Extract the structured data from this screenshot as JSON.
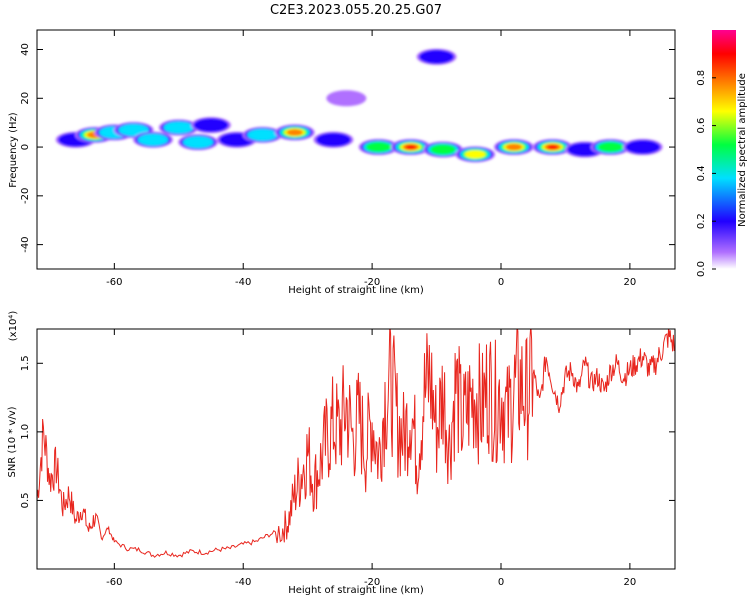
{
  "figure": {
    "title": "C2E3.2023.055.20.25.G07"
  },
  "chart_data": [
    {
      "type": "heatmap",
      "xlabel": "Height of straight line (km)",
      "ylabel": "Frequency (Hz)",
      "xlim": [
        -72,
        27
      ],
      "ylim": [
        -50,
        48
      ],
      "xticks": [
        -60,
        -40,
        -20,
        0,
        20
      ],
      "xtick_labels": [
        "-60",
        "-40",
        "-20",
        "0",
        "20"
      ],
      "yticks": [
        -40,
        -20,
        0,
        20,
        40
      ],
      "ytick_labels": [
        "-40",
        "-20",
        "0",
        "20",
        "40"
      ],
      "grid": false,
      "colorbar": {
        "label": "Normalized spectral amplitude",
        "range": [
          0,
          1
        ],
        "ticks": [
          0.0,
          0.2,
          0.4,
          0.6,
          0.8
        ],
        "tick_labels": [
          "0.0",
          "0.2",
          "0.4",
          "0.6",
          "0.8"
        ],
        "colors": [
          "#ffffff",
          "#b070ff",
          "#2000ff",
          "#00e0ff",
          "#00ff40",
          "#ffff00",
          "#ff8000",
          "#ff0000",
          "#ff0090"
        ]
      },
      "features": [
        {
          "x": -66,
          "y": 3,
          "amp": 0.35
        },
        {
          "x": -63,
          "y": 5,
          "amp": 0.8
        },
        {
          "x": -60,
          "y": 6,
          "amp": 0.45
        },
        {
          "x": -57,
          "y": 7,
          "amp": 0.4
        },
        {
          "x": -54,
          "y": 3,
          "amp": 0.45
        },
        {
          "x": -50,
          "y": 8,
          "amp": 0.45
        },
        {
          "x": -47,
          "y": 2,
          "amp": 0.4
        },
        {
          "x": -45,
          "y": 9,
          "amp": 0.3
        },
        {
          "x": -41,
          "y": 3,
          "amp": 0.35
        },
        {
          "x": -37,
          "y": 5,
          "amp": 0.45
        },
        {
          "x": -32,
          "y": 6,
          "amp": 0.85
        },
        {
          "x": -26,
          "y": 3,
          "amp": 0.3
        },
        {
          "x": -19,
          "y": 0,
          "amp": 0.6
        },
        {
          "x": -14,
          "y": 0,
          "amp": 0.9
        },
        {
          "x": -9,
          "y": -1,
          "amp": 0.65
        },
        {
          "x": -4,
          "y": -3,
          "amp": 0.75
        },
        {
          "x": 2,
          "y": 0,
          "amp": 0.85
        },
        {
          "x": 8,
          "y": 0,
          "amp": 0.9
        },
        {
          "x": 13,
          "y": -1,
          "amp": 0.35
        },
        {
          "x": 17,
          "y": 0,
          "amp": 0.6
        },
        {
          "x": 22,
          "y": 0,
          "amp": 0.35
        },
        {
          "x": -10,
          "y": 37,
          "amp": 0.2
        },
        {
          "x": -24,
          "y": 20,
          "amp": 0.15
        }
      ]
    },
    {
      "type": "line",
      "xlabel": "Height of straight line (km)",
      "ylabel": "SNR (10 * v/v)",
      "multiplier": "(x10⁴)",
      "xlim": [
        -72,
        27
      ],
      "ylim": [
        0,
        1.75
      ],
      "xticks": [
        -60,
        -40,
        -20,
        0,
        20
      ],
      "xtick_labels": [
        "-60",
        "-40",
        "-20",
        "0",
        "20"
      ],
      "yticks": [
        0.5,
        1.0,
        1.5
      ],
      "ytick_labels": [
        "0.5",
        "1.0",
        "1.5"
      ],
      "grid": false,
      "series": [
        {
          "color": "#e8261e",
          "x": [
            -72,
            -71,
            -70,
            -69,
            -68,
            -67,
            -66,
            -65,
            -64,
            -63,
            -62,
            -61,
            -60,
            -58,
            -56,
            -54,
            -52,
            -50,
            -48,
            -46,
            -44,
            -42,
            -40,
            -38,
            -36,
            -34,
            -33,
            -32,
            -31,
            -30,
            -29,
            -28,
            -27,
            -26,
            -25,
            -24,
            -23,
            -22,
            -21,
            -20,
            -19,
            -18,
            -17,
            -16,
            -15,
            -14,
            -13,
            -12,
            -11,
            -10,
            -9,
            -8,
            -7,
            -6,
            -5,
            -4,
            -3,
            -2,
            -1,
            0,
            1,
            2,
            3,
            4,
            5,
            6,
            7,
            8,
            9,
            10,
            11,
            12,
            13,
            14,
            15,
            16,
            17,
            18,
            19,
            20,
            21,
            22,
            23,
            24,
            25,
            26,
            27
          ],
          "y": [
            0.5,
            1.0,
            0.65,
            0.75,
            0.45,
            0.55,
            0.35,
            0.45,
            0.28,
            0.38,
            0.22,
            0.3,
            0.2,
            0.15,
            0.14,
            0.1,
            0.12,
            0.1,
            0.13,
            0.12,
            0.14,
            0.15,
            0.18,
            0.2,
            0.25,
            0.28,
            0.35,
            0.55,
            0.7,
            0.85,
            0.62,
            0.78,
            0.95,
            1.05,
            1.0,
            1.2,
            0.95,
            1.1,
            0.85,
            1.1,
            0.8,
            1.25,
            1.35,
            1.05,
            0.95,
            1.2,
            0.8,
            1.25,
            1.4,
            1.0,
            1.3,
            0.9,
            1.35,
            1.05,
            1.2,
            1.3,
            1.15,
            1.35,
            1.2,
            1.3,
            1.1,
            1.3,
            1.35,
            1.25,
            1.45,
            1.2,
            1.55,
            1.35,
            1.2,
            1.4,
            1.45,
            1.3,
            1.5,
            1.35,
            1.4,
            1.3,
            1.45,
            1.5,
            1.4,
            1.45,
            1.5,
            1.55,
            1.45,
            1.5,
            1.6,
            1.7,
            1.62
          ]
        }
      ]
    }
  ]
}
